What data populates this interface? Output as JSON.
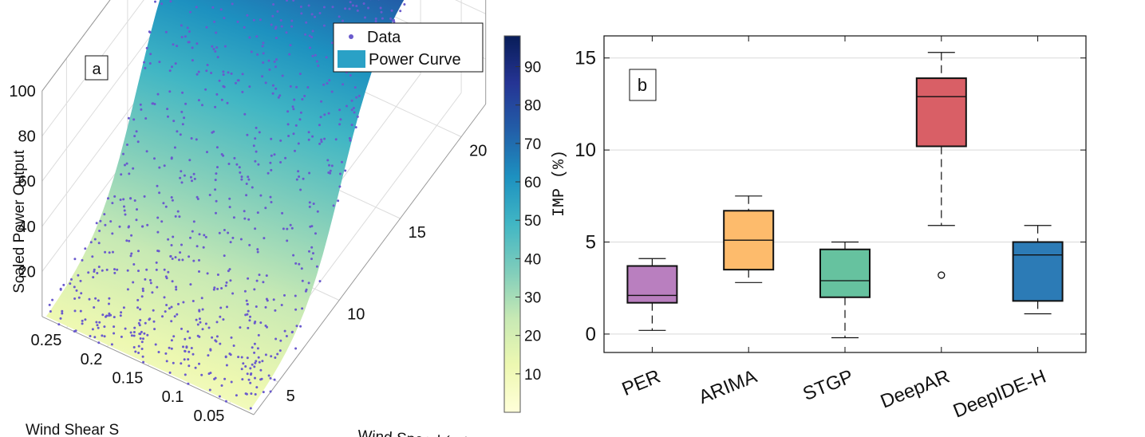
{
  "chart_data": [
    {
      "panel": "a",
      "type": "scatter",
      "title": "",
      "xlabel": "Wind Speed (m/s)",
      "ylabel": "Wind Shear S",
      "zlabel": "Scaled Power Output",
      "x_ticks": [
        "5",
        "10",
        "15",
        "20"
      ],
      "y_ticks": [
        "0.25",
        "0.2",
        "0.15",
        "0.1",
        "0.05"
      ],
      "z_ticks": [
        "20",
        "40",
        "60",
        "80",
        "100"
      ],
      "xlim": [
        3,
        22
      ],
      "ylim": [
        0.02,
        0.28
      ],
      "zlim": [
        0,
        100
      ],
      "legend": [
        {
          "label": "Data",
          "color": "#6a5acd"
        },
        {
          "label": "Power Curve",
          "color": "#2aa1c6"
        }
      ],
      "legend_position": "top-right",
      "colorbar": {
        "ticks": [
          "10",
          "20",
          "30",
          "40",
          "50",
          "60",
          "70",
          "80",
          "90"
        ],
        "range": [
          0,
          98
        ],
        "colormap": [
          "#ffffd9",
          "#edf8b1",
          "#c7e9b4",
          "#7fcdbb",
          "#41b6c4",
          "#1d91c0",
          "#225ea8",
          "#253494",
          "#081d58"
        ]
      },
      "scatter_color": "#6a5acd",
      "grid": true
    },
    {
      "panel": "b",
      "type": "box",
      "title": "",
      "xlabel": "",
      "ylabel": "IMP (%)",
      "ylim": [
        -1,
        16.2
      ],
      "yticks": [
        "0",
        "5",
        "10",
        "15"
      ],
      "grid": true,
      "categories": [
        "PER",
        "ARIMA",
        "STGP",
        "DeepAR",
        "DeepIDE-H"
      ],
      "boxes": [
        {
          "name": "PER",
          "whisker_low": 0.2,
          "q1": 1.7,
          "median": 2.1,
          "q3": 3.7,
          "whisker_high": 4.1,
          "outliers": [],
          "color": "#b97fbf"
        },
        {
          "name": "ARIMA",
          "whisker_low": 2.8,
          "q1": 3.5,
          "median": 5.1,
          "q3": 6.7,
          "whisker_high": 7.5,
          "outliers": [],
          "color": "#fdbb6c"
        },
        {
          "name": "STGP",
          "whisker_low": -0.2,
          "q1": 2.0,
          "median": 2.9,
          "q3": 4.6,
          "whisker_high": 5.0,
          "outliers": [],
          "color": "#66c29f"
        },
        {
          "name": "DeepAR",
          "whisker_low": 5.9,
          "q1": 10.2,
          "median": 12.9,
          "q3": 13.9,
          "whisker_high": 15.3,
          "outliers": [
            3.2
          ],
          "color": "#d95f66"
        },
        {
          "name": "DeepIDE-H",
          "whisker_low": 1.1,
          "q1": 1.8,
          "median": 4.3,
          "q3": 5.0,
          "whisker_high": 5.9,
          "outliers": [],
          "color": "#2c7bb6"
        }
      ]
    }
  ]
}
